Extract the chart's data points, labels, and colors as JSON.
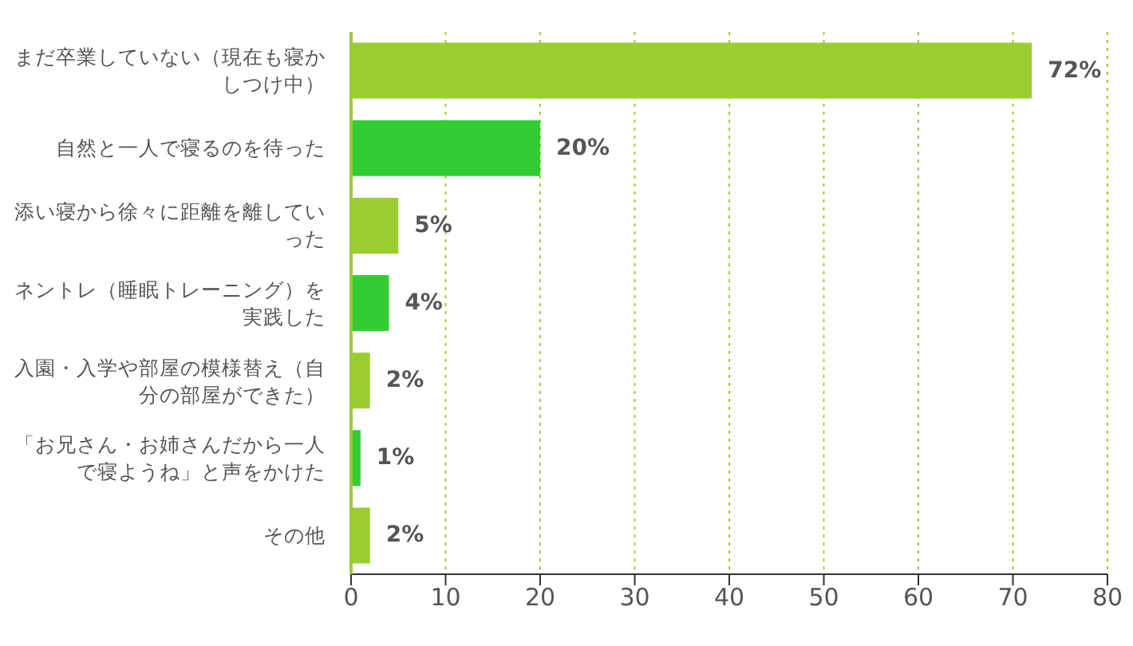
{
  "chart_data": {
    "type": "bar",
    "orientation": "horizontal",
    "categories": [
      "まだ卒業していない（現在も寝かしつけ中）",
      "自然と一人で寝るのを待った",
      "添い寝から徐々に距離を離していった",
      "ネントレ（睡眠トレーニング）を実践した",
      "入園・入学や部屋の模様替え（自分の部屋ができた）",
      "「お兄さん・お姉さんだから一人で寝ようね」と声をかけた",
      "その他"
    ],
    "values": [
      72,
      20,
      5,
      4,
      2,
      1,
      2
    ],
    "colors": [
      "#9acd32",
      "#32cd32",
      "#9acd32",
      "#32cd32",
      "#9acd32",
      "#32cd32",
      "#9acd32"
    ],
    "value_labels": [
      "72%",
      "20%",
      "5%",
      "4%",
      "2%",
      "1%",
      "2%"
    ],
    "xlim": [
      0,
      80
    ],
    "xticks": [
      0,
      10,
      20,
      30,
      40,
      50,
      60,
      70,
      80
    ],
    "grid": "x"
  }
}
